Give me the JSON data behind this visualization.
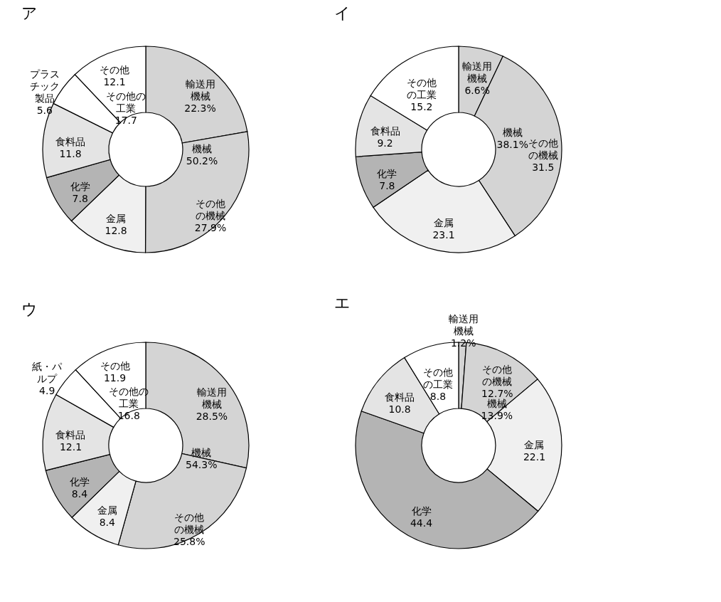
{
  "chart_data": [
    {
      "type": "donut",
      "title": "ア",
      "categories": [
        "輸送用機械",
        "その他の機械",
        "金属",
        "化学",
        "食料品",
        "プラスチック製品",
        "その他"
      ],
      "values": [
        22.3,
        27.9,
        12.8,
        7.8,
        11.8,
        5.6,
        12.1
      ],
      "value_labels": [
        "22.3%",
        "27.9%",
        "12.8",
        "7.8",
        "11.8",
        "5.6",
        "12.1"
      ],
      "colors": [
        "#d4d4d4",
        "#d4d4d4",
        "#f0f0f0",
        "#b4b4b4",
        "#e4e4e4",
        "#ffffff",
        "#ffffff"
      ],
      "annotations": [
        "機械 50.2%",
        "その他の工業 17.7"
      ]
    },
    {
      "type": "donut",
      "title": "イ",
      "categories": [
        "輸送用機械",
        "その他の機械",
        "金属",
        "化学",
        "食料品",
        "その他の工業"
      ],
      "values": [
        6.6,
        31.5,
        23.1,
        7.8,
        9.2,
        15.2
      ],
      "value_labels": [
        "6.6%",
        "31.5",
        "23.1",
        "7.8",
        "9.2",
        "15.2"
      ],
      "colors": [
        "#d4d4d4",
        "#d4d4d4",
        "#f0f0f0",
        "#b4b4b4",
        "#e4e4e4",
        "#ffffff"
      ],
      "annotations": [
        "機械 38.1%"
      ]
    },
    {
      "type": "donut",
      "title": "ウ",
      "categories": [
        "輸送用機械",
        "その他の機械",
        "金属",
        "化学",
        "食料品",
        "紙・パルプ",
        "その他"
      ],
      "values": [
        28.5,
        25.8,
        8.4,
        8.4,
        12.1,
        4.9,
        11.9
      ],
      "value_labels": [
        "28.5%",
        "25.8%",
        "8.4",
        "8.4",
        "12.1",
        "4.9",
        "11.9"
      ],
      "colors": [
        "#d4d4d4",
        "#d4d4d4",
        "#f0f0f0",
        "#b4b4b4",
        "#e4e4e4",
        "#ffffff",
        "#ffffff"
      ],
      "annotations": [
        "機械 54.3%",
        "その他の工業 16.8"
      ]
    },
    {
      "type": "donut",
      "title": "エ",
      "categories": [
        "輸送用機械",
        "その他の機械",
        "金属",
        "化学",
        "食料品",
        "その他の工業"
      ],
      "values": [
        1.2,
        12.7,
        22.1,
        44.4,
        10.8,
        8.8
      ],
      "value_labels": [
        "1.2%",
        "12.7%",
        "22.1",
        "44.4",
        "10.8",
        "8.8"
      ],
      "colors": [
        "#d4d4d4",
        "#d4d4d4",
        "#f0f0f0",
        "#b4b4b4",
        "#e4e4e4",
        "#ffffff"
      ],
      "annotations": [
        "機械 13.9%"
      ]
    }
  ]
}
